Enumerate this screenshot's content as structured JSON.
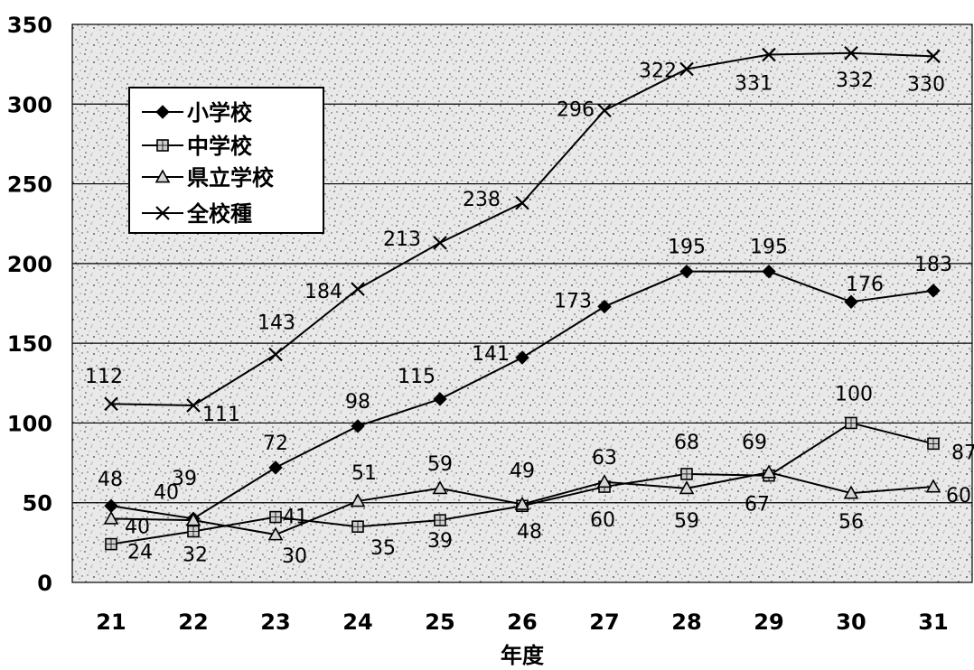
{
  "chart_data": {
    "type": "line",
    "xlabel": "年度",
    "ylabel": "",
    "ylim": [
      0,
      350
    ],
    "yticks": [
      0,
      50,
      100,
      150,
      200,
      250,
      300,
      350
    ],
    "categories": [
      "21",
      "22",
      "23",
      "24",
      "25",
      "26",
      "27",
      "28",
      "29",
      "30",
      "31"
    ],
    "grid": "horizontal",
    "legend_position": "top-left",
    "series": [
      {
        "name": "小学校",
        "marker": "diamond",
        "values": [
          48,
          40,
          72,
          98,
          115,
          141,
          173,
          195,
          195,
          176,
          183
        ]
      },
      {
        "name": "中学校",
        "marker": "square",
        "values": [
          24,
          32,
          41,
          35,
          39,
          48,
          60,
          68,
          67,
          100,
          87
        ]
      },
      {
        "name": "県立学校",
        "marker": "triangle",
        "values": [
          40,
          39,
          30,
          51,
          59,
          49,
          63,
          59,
          69,
          56,
          60
        ]
      },
      {
        "name": "全校種",
        "marker": "x",
        "values": [
          112,
          111,
          143,
          184,
          213,
          238,
          296,
          322,
          331,
          332,
          330
        ]
      }
    ]
  }
}
